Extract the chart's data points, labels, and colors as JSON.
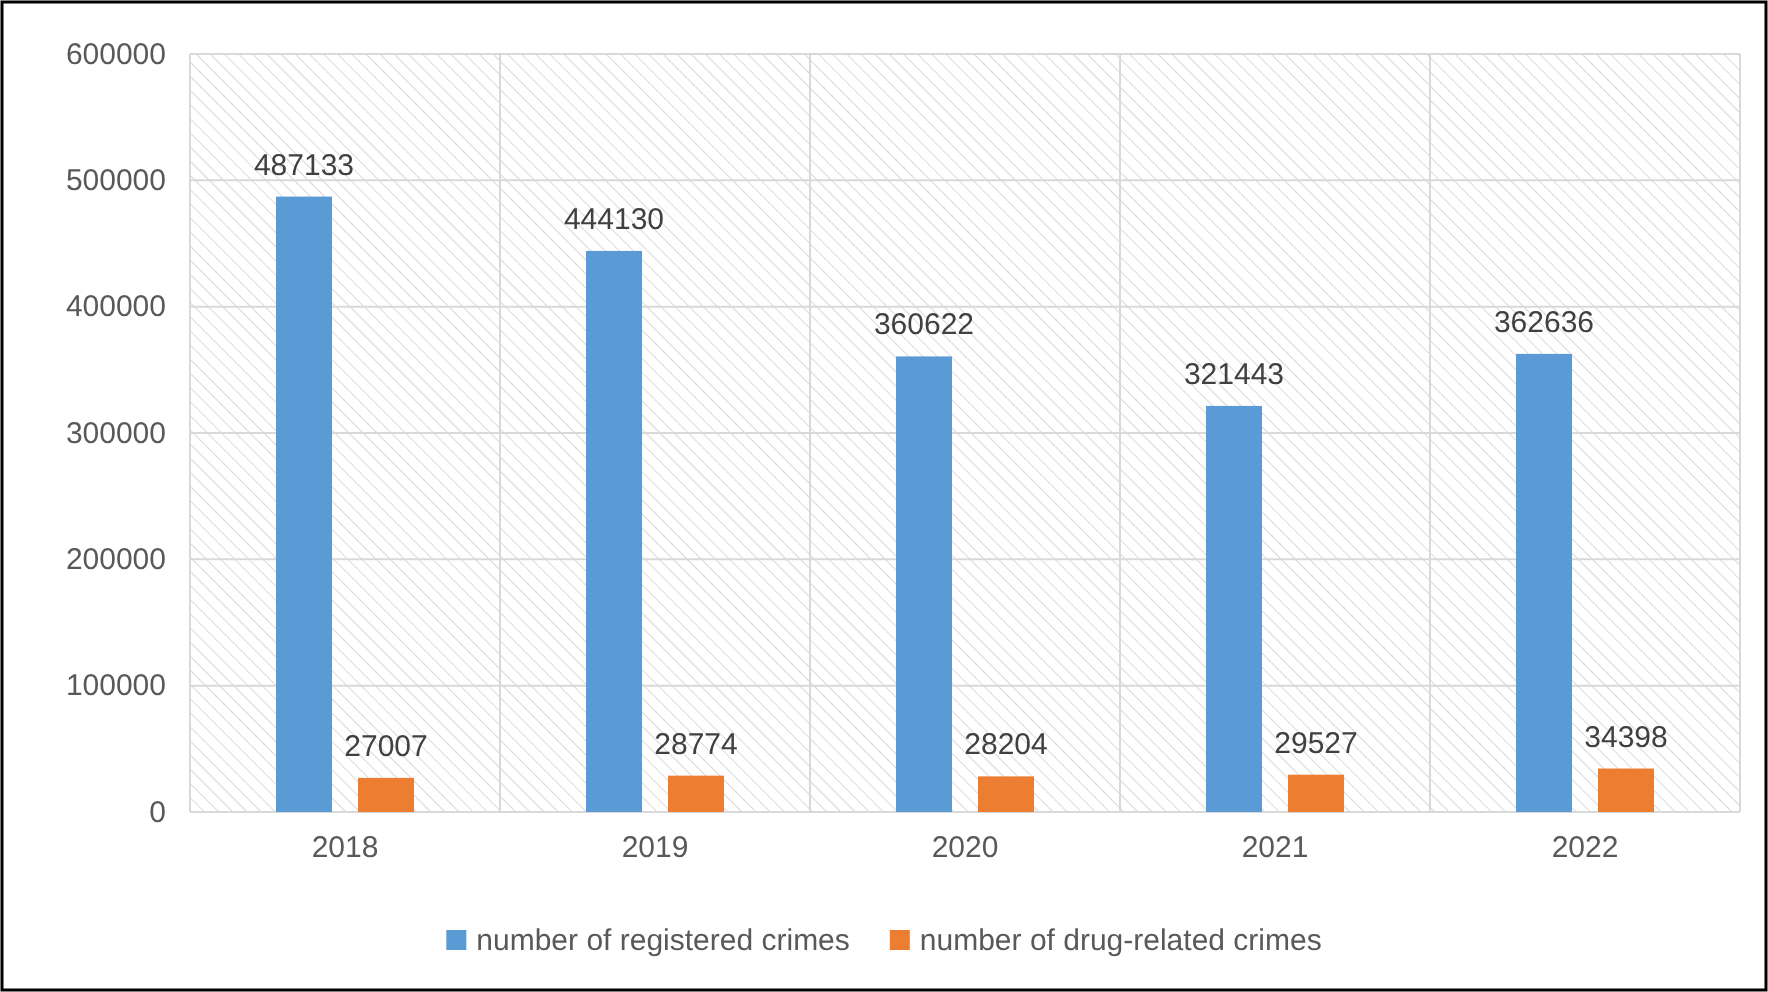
{
  "chart_data": {
    "type": "bar",
    "categories": [
      "2018",
      "2019",
      "2020",
      "2021",
      "2022"
    ],
    "series": [
      {
        "name": "number of registered crimes",
        "color": "#5b9bd5",
        "values": [
          487133,
          444130,
          360622,
          321443,
          362636
        ]
      },
      {
        "name": "number of drug-related crimes",
        "color": "#ed7d31",
        "values": [
          27007,
          28774,
          28204,
          29527,
          34398
        ]
      }
    ],
    "ylim": [
      0,
      600000
    ],
    "yticks": [
      0,
      100000,
      200000,
      300000,
      400000,
      500000,
      600000
    ],
    "grid": true,
    "legend": "bottom",
    "data_labels": true
  }
}
